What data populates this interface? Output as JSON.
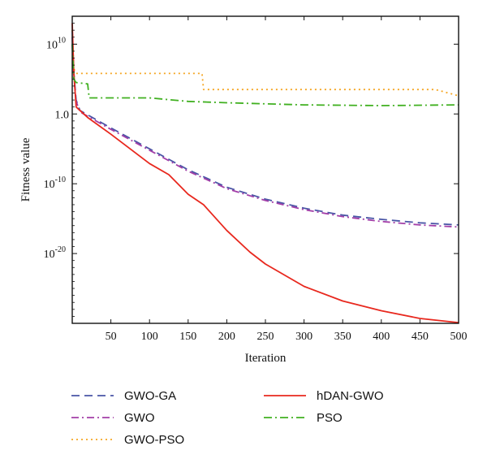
{
  "chart_data": {
    "type": "line",
    "title": "",
    "xlabel": "Iteration",
    "ylabel": "Fitness value",
    "xlim": [
      0,
      500
    ],
    "y_scale": "log",
    "ylim_log10": [
      -30,
      14
    ],
    "x_ticks": [
      50,
      100,
      150,
      200,
      250,
      300,
      350,
      400,
      450,
      500
    ],
    "x_tick_labels": [
      "50",
      "100",
      "150",
      "200",
      "250",
      "300",
      "350",
      "400",
      "450",
      "500"
    ],
    "y_ticks_log10": [
      10,
      0,
      -10,
      -20
    ],
    "y_tick_labels": [
      {
        "base": "10",
        "exp": "10"
      },
      {
        "base": "1.0",
        "exp": ""
      },
      {
        "base": "10",
        "exp": "-10"
      },
      {
        "base": "10",
        "exp": "-20"
      }
    ],
    "grid": false,
    "legend_position": "bottom",
    "series": [
      {
        "name": "GWO-GA",
        "color": "#4a56a6",
        "dash": "dashed",
        "log10_values": [
          [
            0,
            12
          ],
          [
            2,
            6
          ],
          [
            5,
            2
          ],
          [
            10,
            0.5
          ],
          [
            50,
            -2
          ],
          [
            100,
            -5
          ],
          [
            150,
            -8
          ],
          [
            200,
            -10.5
          ],
          [
            250,
            -12.2
          ],
          [
            300,
            -13.5
          ],
          [
            350,
            -14.5
          ],
          [
            400,
            -15.1
          ],
          [
            450,
            -15.6
          ],
          [
            500,
            -15.9
          ]
        ]
      },
      {
        "name": "GWO",
        "color": "#a23ea8",
        "dash": "dashdot",
        "log10_values": [
          [
            0,
            11
          ],
          [
            2,
            5.5
          ],
          [
            5,
            1.8
          ],
          [
            10,
            0.3
          ],
          [
            50,
            -2.2
          ],
          [
            100,
            -5.2
          ],
          [
            150,
            -8.2
          ],
          [
            200,
            -10.7
          ],
          [
            250,
            -12.4
          ],
          [
            300,
            -13.7
          ],
          [
            350,
            -14.7
          ],
          [
            400,
            -15.4
          ],
          [
            450,
            -15.9
          ],
          [
            500,
            -16.2
          ]
        ]
      },
      {
        "name": "GWO-PSO",
        "color": "#f5a623",
        "dash": "dotted",
        "log10_values": [
          [
            0,
            12
          ],
          [
            2,
            6.5
          ],
          [
            5,
            5.8
          ],
          [
            10,
            5.8
          ],
          [
            50,
            5.8
          ],
          [
            100,
            5.8
          ],
          [
            168,
            5.8
          ],
          [
            170,
            3.5
          ],
          [
            250,
            3.5
          ],
          [
            300,
            3.5
          ],
          [
            350,
            3.5
          ],
          [
            400,
            3.5
          ],
          [
            470,
            3.5
          ],
          [
            500,
            2.6
          ]
        ]
      },
      {
        "name": "hDAN-GWO",
        "color": "#e8281e",
        "dash": "solid",
        "log10_values": [
          [
            0,
            13
          ],
          [
            2,
            6
          ],
          [
            5,
            1
          ],
          [
            20,
            -0.5
          ],
          [
            50,
            -2.9
          ],
          [
            100,
            -7.1
          ],
          [
            125,
            -8.7
          ],
          [
            150,
            -11.5
          ],
          [
            170,
            -13
          ],
          [
            200,
            -16.7
          ],
          [
            230,
            -19.8
          ],
          [
            250,
            -21.5
          ],
          [
            300,
            -24.7
          ],
          [
            350,
            -26.8
          ],
          [
            400,
            -28.2
          ],
          [
            450,
            -29.3
          ],
          [
            500,
            -29.9
          ]
        ]
      },
      {
        "name": "PSO",
        "color": "#40b020",
        "dash": "dashdotlong",
        "log10_values": [
          [
            0,
            10
          ],
          [
            2,
            5
          ],
          [
            5,
            4.5
          ],
          [
            20,
            4.3
          ],
          [
            22,
            2.3
          ],
          [
            50,
            2.3
          ],
          [
            100,
            2.3
          ],
          [
            150,
            1.8
          ],
          [
            200,
            1.6
          ],
          [
            300,
            1.3
          ],
          [
            400,
            1.2
          ],
          [
            500,
            1.3
          ]
        ]
      }
    ]
  }
}
